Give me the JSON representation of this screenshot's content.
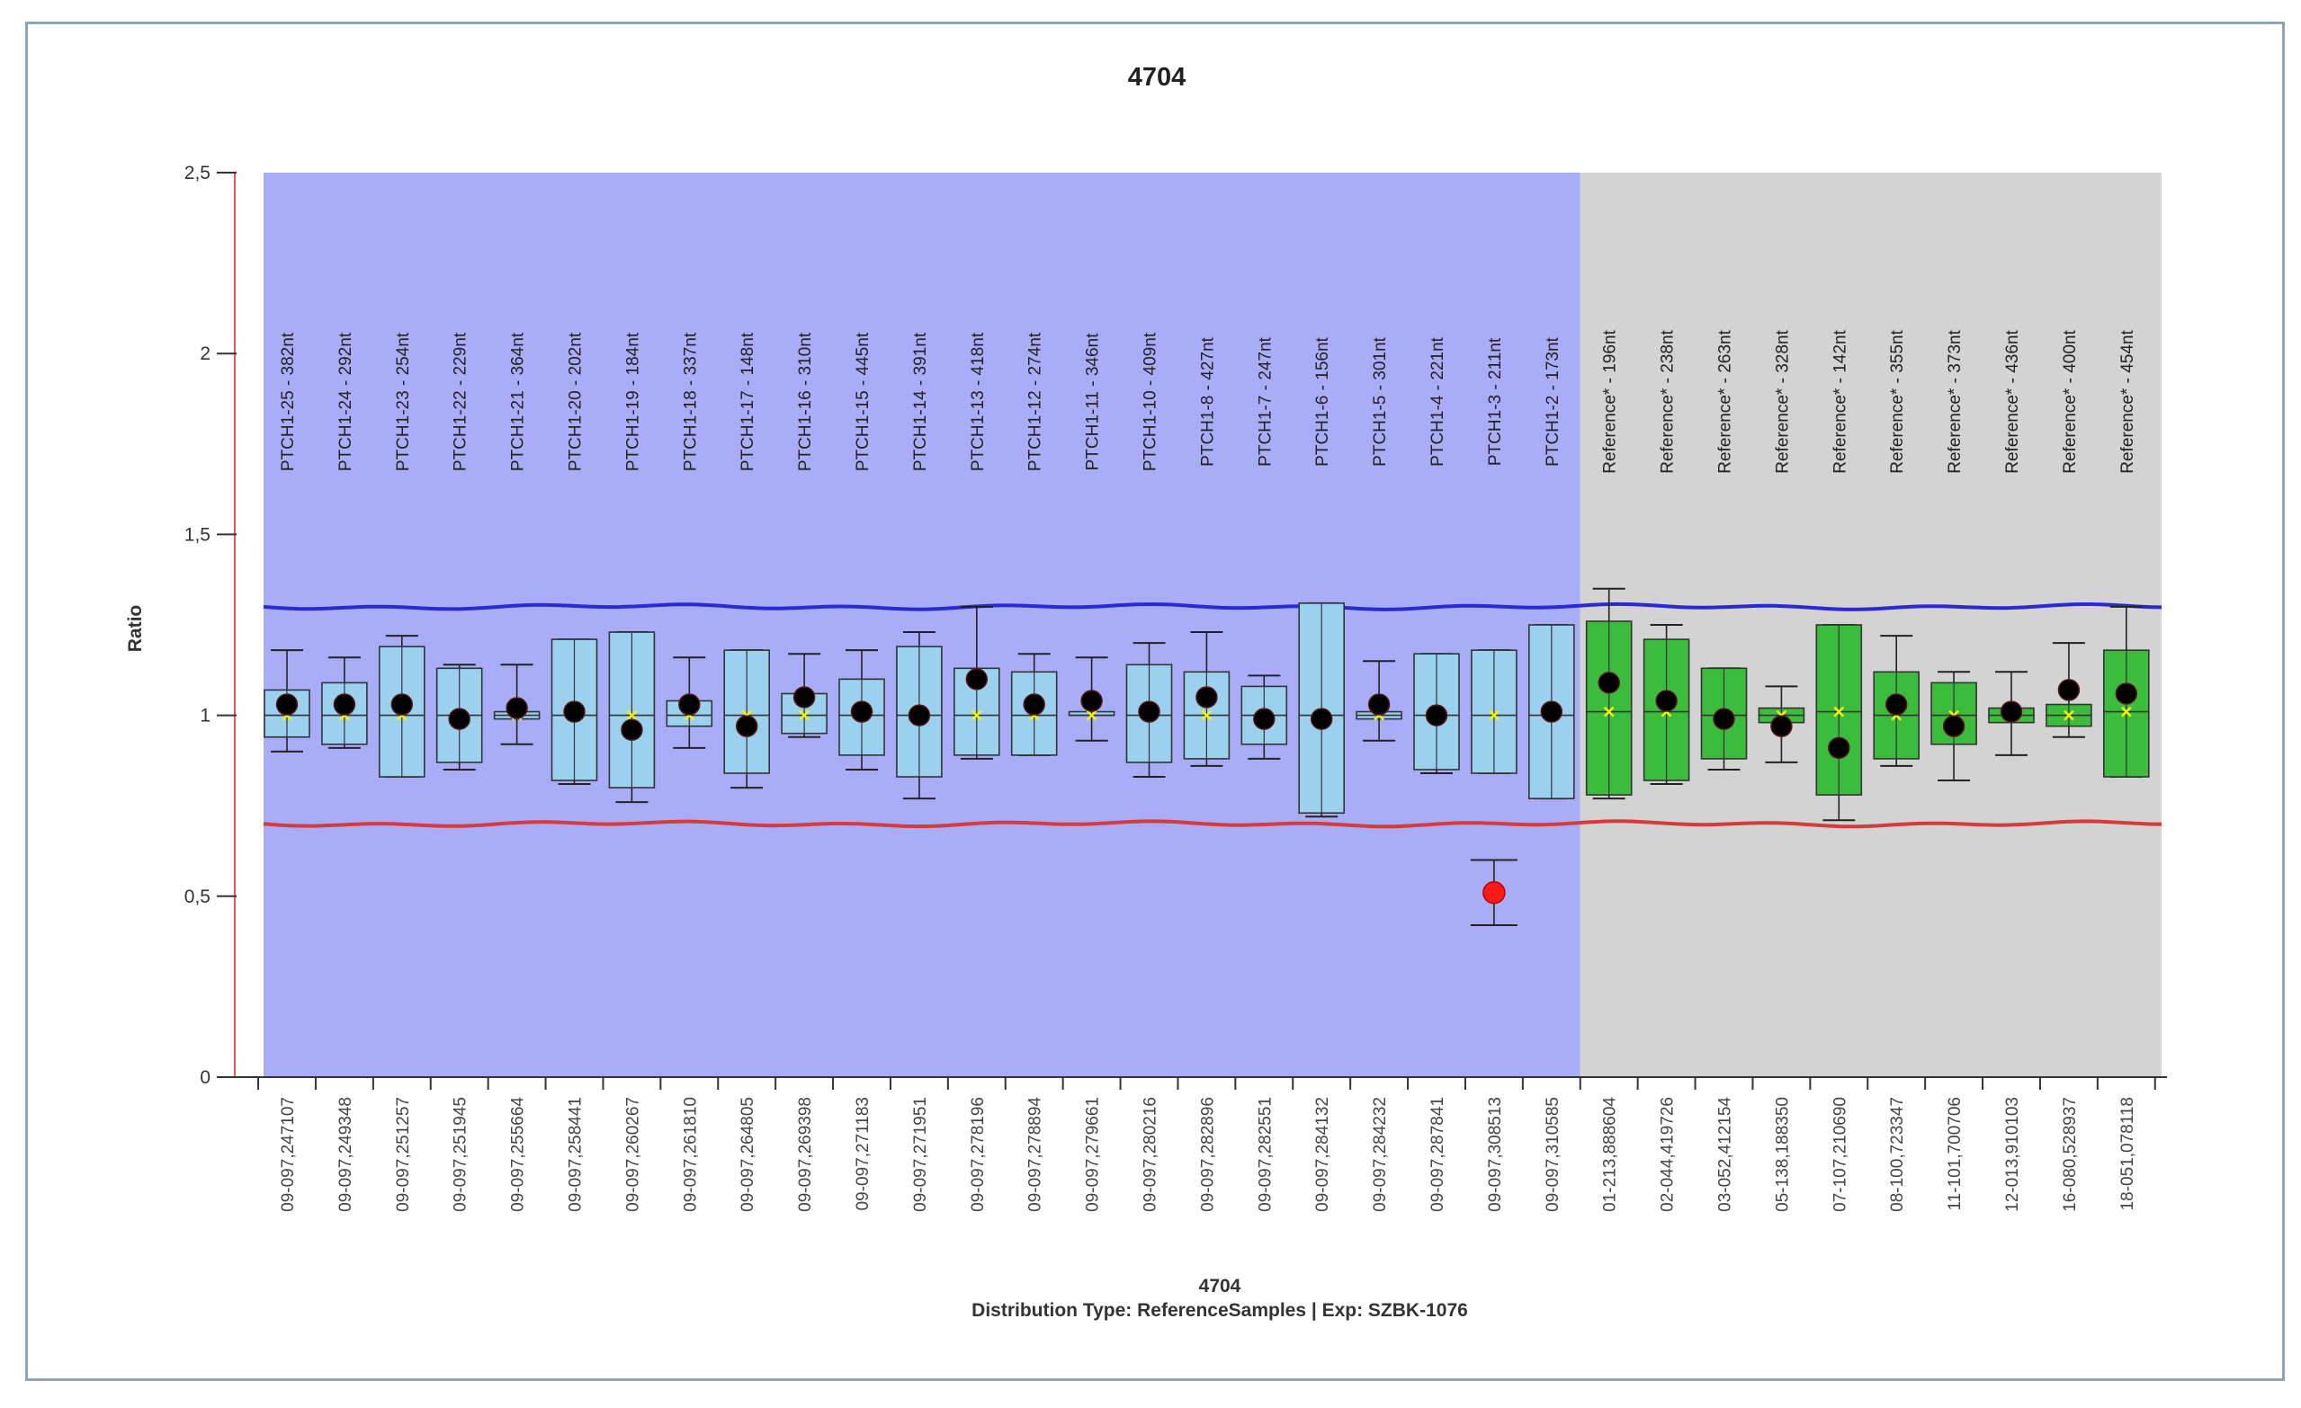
{
  "chart_data": {
    "type": "box",
    "title": "4704",
    "xlabel": "4704",
    "subtitle": "Distribution Type: ReferenceSamples | Exp: SZBK-1076",
    "ylabel": "Ratio",
    "ylim": [
      0,
      2.5
    ],
    "yticks": [
      "0",
      "0,5",
      "1",
      "1,5",
      "2",
      "2,5"
    ],
    "ytick_values": [
      0,
      0.5,
      1,
      1.5,
      2,
      2.5
    ],
    "grid": false,
    "upper_threshold": 1.3,
    "lower_threshold": 0.7,
    "colors": {
      "test_region": "#a9adf7",
      "reference_region": "#d3d3d3",
      "test_box": "#9bd0ee",
      "reference_box": "#3cbc3c",
      "upper_line": "#2a2ad4",
      "lower_line": "#d63a3a",
      "point": "#000000",
      "outlier_point": "#ff1a1a",
      "median_marker": "#f3f30a"
    },
    "categories": [
      "09-097,247107",
      "09-097,249348",
      "09-097,251257",
      "09-097,251945",
      "09-097,255664",
      "09-097,258441",
      "09-097,260267",
      "09-097,261810",
      "09-097,264805",
      "09-097,269398",
      "09-097,271183",
      "09-097,271951",
      "09-097,278196",
      "09-097,278894",
      "09-097,279661",
      "09-097,280216",
      "09-097,282896",
      "09-097,282551",
      "09-097,284132",
      "09-097,284232",
      "09-097,287841",
      "09-097,308513",
      "09-097,310585",
      "01-213,888604",
      "02-044,419726",
      "03-052,412154",
      "05-138,188350",
      "07-107,210690",
      "08-100,723347",
      "11-101,700706",
      "12-013,910103",
      "16-080,528937",
      "18-051,078118"
    ],
    "probe_labels": [
      "PTCH1-25 - 382nt",
      "PTCH1-24 - 292nt",
      "PTCH1-23 - 254nt",
      "PTCH1-22 - 229nt",
      "PTCH1-21 - 364nt",
      "PTCH1-20 - 202nt",
      "PTCH1-19 - 184nt",
      "PTCH1-18 - 337nt",
      "PTCH1-17 - 148nt",
      "PTCH1-16 - 310nt",
      "PTCH1-15 - 445nt",
      "PTCH1-14 - 391nt",
      "PTCH1-13 - 418nt",
      "PTCH1-12 - 274nt",
      "PTCH1-11 - 346nt",
      "PTCH1-10 - 409nt",
      "PTCH1-8 - 427nt",
      "PTCH1-7 - 247nt",
      "PTCH1-6 - 156nt",
      "PTCH1-5 - 301nt",
      "PTCH1-4 - 221nt",
      "PTCH1-3 - 211nt",
      "PTCH1-2 - 173nt",
      "Reference* - 196nt",
      "Reference* - 238nt",
      "Reference* - 263nt",
      "Reference* - 328nt",
      "Reference* - 142nt",
      "Reference* - 355nt",
      "Reference* - 373nt",
      "Reference* - 436nt",
      "Reference* - 400nt",
      "Reference* - 454nt"
    ],
    "group": [
      "test",
      "test",
      "test",
      "test",
      "test",
      "test",
      "test",
      "test",
      "test",
      "test",
      "test",
      "test",
      "test",
      "test",
      "test",
      "test",
      "test",
      "test",
      "test",
      "test",
      "test",
      "test",
      "test",
      "reference",
      "reference",
      "reference",
      "reference",
      "reference",
      "reference",
      "reference",
      "reference",
      "reference",
      "reference"
    ],
    "whisker_low": [
      0.9,
      0.91,
      0.83,
      0.85,
      0.92,
      0.81,
      0.76,
      0.91,
      0.8,
      0.94,
      0.85,
      0.77,
      0.88,
      0.89,
      0.93,
      0.83,
      0.86,
      0.88,
      0.72,
      0.93,
      0.84,
      0.84,
      0.77,
      0.77,
      0.81,
      0.85,
      0.87,
      0.71,
      0.86,
      0.82,
      0.89,
      0.94,
      0.83
    ],
    "q1": [
      0.94,
      0.92,
      0.83,
      0.87,
      0.99,
      0.82,
      0.8,
      0.97,
      0.84,
      0.95,
      0.89,
      0.83,
      0.89,
      0.89,
      1.0,
      0.87,
      0.88,
      0.92,
      0.73,
      0.99,
      0.85,
      0.84,
      0.77,
      0.78,
      0.82,
      0.88,
      0.98,
      0.78,
      0.88,
      0.92,
      0.98,
      0.97,
      0.83
    ],
    "median": [
      1.0,
      1.0,
      1.0,
      1.0,
      1.0,
      1.0,
      1.0,
      1.0,
      1.0,
      1.0,
      1.0,
      1.0,
      1.0,
      1.0,
      1.0,
      1.0,
      1.0,
      1.0,
      1.0,
      1.0,
      1.0,
      1.0,
      1.0,
      1.01,
      1.01,
      1.0,
      1.0,
      1.01,
      1.0,
      1.0,
      1.0,
      1.0,
      1.01
    ],
    "q3": [
      1.07,
      1.09,
      1.19,
      1.13,
      1.01,
      1.21,
      1.23,
      1.04,
      1.18,
      1.06,
      1.1,
      1.19,
      1.13,
      1.12,
      1.01,
      1.14,
      1.12,
      1.08,
      1.31,
      1.01,
      1.17,
      1.18,
      1.25,
      1.26,
      1.21,
      1.13,
      1.02,
      1.25,
      1.12,
      1.09,
      1.02,
      1.03,
      1.18
    ],
    "whisker_high": [
      1.18,
      1.16,
      1.22,
      1.14,
      1.14,
      1.21,
      1.23,
      1.16,
      1.18,
      1.17,
      1.18,
      1.23,
      1.3,
      1.17,
      1.16,
      1.2,
      1.23,
      1.11,
      1.31,
      1.15,
      1.17,
      1.18,
      1.25,
      1.35,
      1.25,
      1.13,
      1.08,
      1.25,
      1.22,
      1.12,
      1.12,
      1.2,
      1.3
    ],
    "sample_value": [
      1.03,
      1.03,
      1.03,
      0.99,
      1.02,
      1.01,
      0.96,
      1.03,
      0.97,
      1.05,
      1.01,
      1.0,
      1.1,
      1.03,
      1.04,
      1.01,
      1.05,
      0.99,
      0.99,
      1.03,
      1.0,
      0.51,
      1.01,
      1.09,
      1.04,
      0.99,
      0.97,
      0.91,
      1.03,
      0.97,
      1.01,
      1.07,
      1.06
    ],
    "outlier_error": [
      null,
      null,
      null,
      null,
      null,
      null,
      null,
      null,
      null,
      null,
      null,
      null,
      null,
      null,
      null,
      null,
      null,
      null,
      null,
      null,
      null,
      [
        0.42,
        0.6
      ],
      null,
      null,
      null,
      null,
      null,
      null,
      null,
      null,
      null,
      null,
      null
    ]
  }
}
